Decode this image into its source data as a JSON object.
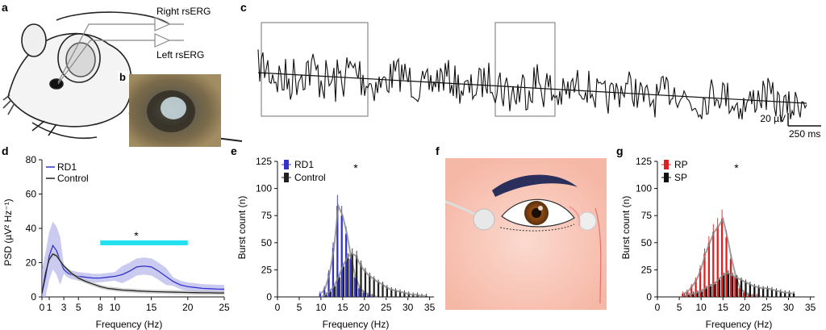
{
  "panels": {
    "a": {
      "letter": "a",
      "right_label": "Right rsERG",
      "left_label": "Left rsERG"
    },
    "b": {
      "letter": "b"
    },
    "c": {
      "letter": "c",
      "scale_v": "20 µV",
      "scale_t": "250 ms"
    },
    "d": {
      "letter": "d",
      "ylabel": "PSD (µV² Hz⁻¹)",
      "xlabel": "Frequency (Hz)",
      "star": "*"
    },
    "e": {
      "letter": "e",
      "ylabel": "Burst count (n)",
      "xlabel": "Frequency (Hz)",
      "star": "*"
    },
    "f": {
      "letter": "f"
    },
    "g": {
      "letter": "g",
      "ylabel": "Burst count (n)",
      "xlabel": "Frequency (Hz)",
      "star": "*"
    }
  },
  "colors": {
    "rd1": "#3333cc",
    "control": "#222222",
    "rp": "#e02020",
    "sp": "#111111",
    "cyan_bar": "#22e0f0",
    "fit": "#888888"
  },
  "chart_data": [
    {
      "id": "d",
      "type": "line",
      "xlabel": "Frequency (Hz)",
      "ylabel": "PSD (µV² Hz⁻¹)",
      "xlim": [
        0,
        25
      ],
      "ylim": [
        0,
        80
      ],
      "xticks": [
        0,
        1,
        3,
        5,
        8,
        10,
        15,
        20,
        25
      ],
      "yticks": [
        0,
        20,
        40,
        60,
        80
      ],
      "legend": "top-left",
      "significance_bar": [
        8,
        20
      ],
      "series": [
        {
          "name": "RD1",
          "x": [
            0,
            0.5,
            1,
            1.5,
            2,
            2.5,
            3,
            3.5,
            4,
            5,
            6,
            7,
            8,
            9,
            10,
            11,
            12,
            13,
            14,
            15,
            16,
            17,
            18,
            19,
            20,
            21,
            22,
            23,
            24,
            25
          ],
          "y": [
            2,
            12,
            24,
            30,
            27,
            21,
            16,
            14,
            13,
            12,
            11.5,
            11,
            11,
            11.5,
            12,
            13,
            15,
            17.5,
            18,
            17.5,
            15,
            12,
            9,
            7,
            6,
            5.5,
            5,
            4.8,
            4.6,
            4.5
          ]
        },
        {
          "name": "Control",
          "x": [
            0,
            0.5,
            1,
            1.5,
            2,
            2.5,
            3,
            3.5,
            4,
            5,
            6,
            7,
            8,
            9,
            10,
            11,
            12,
            13,
            14,
            15,
            16,
            17,
            18,
            19,
            20,
            21,
            22,
            23,
            24,
            25
          ],
          "y": [
            2,
            14,
            22,
            25,
            24,
            21,
            18,
            16,
            14,
            11,
            9,
            7.5,
            6,
            5,
            4.5,
            4,
            3.8,
            3.5,
            3.3,
            3.1,
            3,
            2.9,
            2.8,
            2.7,
            2.6,
            2.5,
            2.4,
            2.4,
            2.3,
            2.3
          ]
        }
      ]
    },
    {
      "id": "e",
      "type": "bar",
      "xlabel": "Frequency (Hz)",
      "ylabel": "Burst count (n)",
      "xlim": [
        0,
        36
      ],
      "ylim": [
        0,
        125
      ],
      "xticks": [
        0,
        5,
        10,
        15,
        20,
        25,
        30,
        35
      ],
      "yticks": [
        0,
        25,
        50,
        75,
        100,
        125
      ],
      "legend": "top-left",
      "categories": [
        10,
        11,
        12,
        13,
        14,
        15,
        16,
        17,
        18,
        19,
        20,
        21,
        22,
        23,
        24,
        25,
        26,
        27,
        28,
        29,
        30,
        31,
        32,
        33,
        34
      ],
      "series": [
        {
          "name": "RD1",
          "values": [
            3,
            8,
            22,
            45,
            84,
            75,
            58,
            35,
            18,
            8,
            4,
            2,
            1,
            0,
            0,
            0,
            0,
            0,
            0,
            0,
            0,
            0,
            0,
            0,
            0
          ]
        },
        {
          "name": "Control",
          "values": [
            0,
            2,
            5,
            10,
            18,
            28,
            36,
            40,
            38,
            30,
            24,
            20,
            17,
            14,
            12,
            9,
            7,
            6,
            5,
            4,
            3,
            2,
            2,
            1,
            1
          ]
        }
      ]
    },
    {
      "id": "g",
      "type": "bar",
      "xlabel": "Frequency (Hz)",
      "ylabel": "Burst count (n)",
      "xlim": [
        0,
        36
      ],
      "ylim": [
        0,
        125
      ],
      "xticks": [
        0,
        5,
        10,
        15,
        20,
        25,
        30,
        35
      ],
      "yticks": [
        0,
        25,
        50,
        75,
        100,
        125
      ],
      "legend": "top-left",
      "categories": [
        6,
        7,
        8,
        9,
        10,
        11,
        12,
        13,
        14,
        15,
        16,
        17,
        18,
        19,
        20,
        21,
        22,
        23,
        24,
        25,
        26,
        27,
        28,
        29,
        30,
        31
      ],
      "series": [
        {
          "name": "RP",
          "values": [
            3,
            5,
            10,
            16,
            26,
            40,
            50,
            60,
            65,
            72,
            55,
            35,
            18,
            8,
            4,
            2,
            1,
            1,
            0,
            0,
            0,
            0,
            0,
            0,
            0,
            0
          ]
        },
        {
          "name": "SP",
          "values": [
            1,
            2,
            3,
            4,
            5,
            8,
            10,
            12,
            16,
            20,
            22,
            20,
            18,
            16,
            14,
            12,
            10,
            9,
            8,
            8,
            7,
            6,
            5,
            4,
            4,
            3
          ]
        }
      ]
    }
  ]
}
